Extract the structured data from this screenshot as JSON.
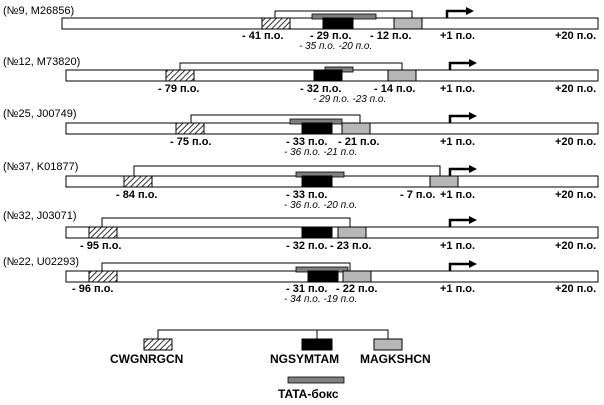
{
  "diagram": {
    "rows": [
      {
        "id": "(№9,  M26856)",
        "cw": "- 41 п.о.",
        "ng": "- 29 п.о.",
        "ma": "- 12 п.о.",
        "tata": "- 35 п.о. -20 п.о."
      },
      {
        "id": "(№12, M73820)",
        "cw": "- 79 п.о.",
        "ng": "- 32 п.о.",
        "ma": "- 14 п.о.",
        "tata": "- 29 п.о. -23 п.о."
      },
      {
        "id": "(№25, J00749)",
        "cw": "- 75 п.о.",
        "ng": "- 33 п.о.",
        "ma": "- 21 п.о.",
        "tata": "- 36 п.о. -21 п.о."
      },
      {
        "id": "(№37, K01877)",
        "cw": "- 84 п.о.",
        "ng": "- 33 п.о.",
        "ma": "- 7 п.о.",
        "tata": "- 36 п.о. -20 п.о."
      },
      {
        "id": "(№32, J03071)",
        "cw": "- 95 п.о.",
        "ng": "- 32 п.о.",
        "ma": "- 23 п.о.",
        "tata": ""
      },
      {
        "id": "(№22, U02293)",
        "cw": "- 96 п.о.",
        "ng": "- 31 п.о.",
        "ma": "- 22 п.о.",
        "tata": "- 34 п.о. -19 п.о."
      }
    ],
    "tss_label": "+1 п.о.",
    "end_label": "+20 п.о.",
    "legend": {
      "cw": "CWGNRGCN",
      "ng": "NGSYMTAM",
      "ma": "MAGKSHCN",
      "tata": "TATA-бокс"
    }
  }
}
